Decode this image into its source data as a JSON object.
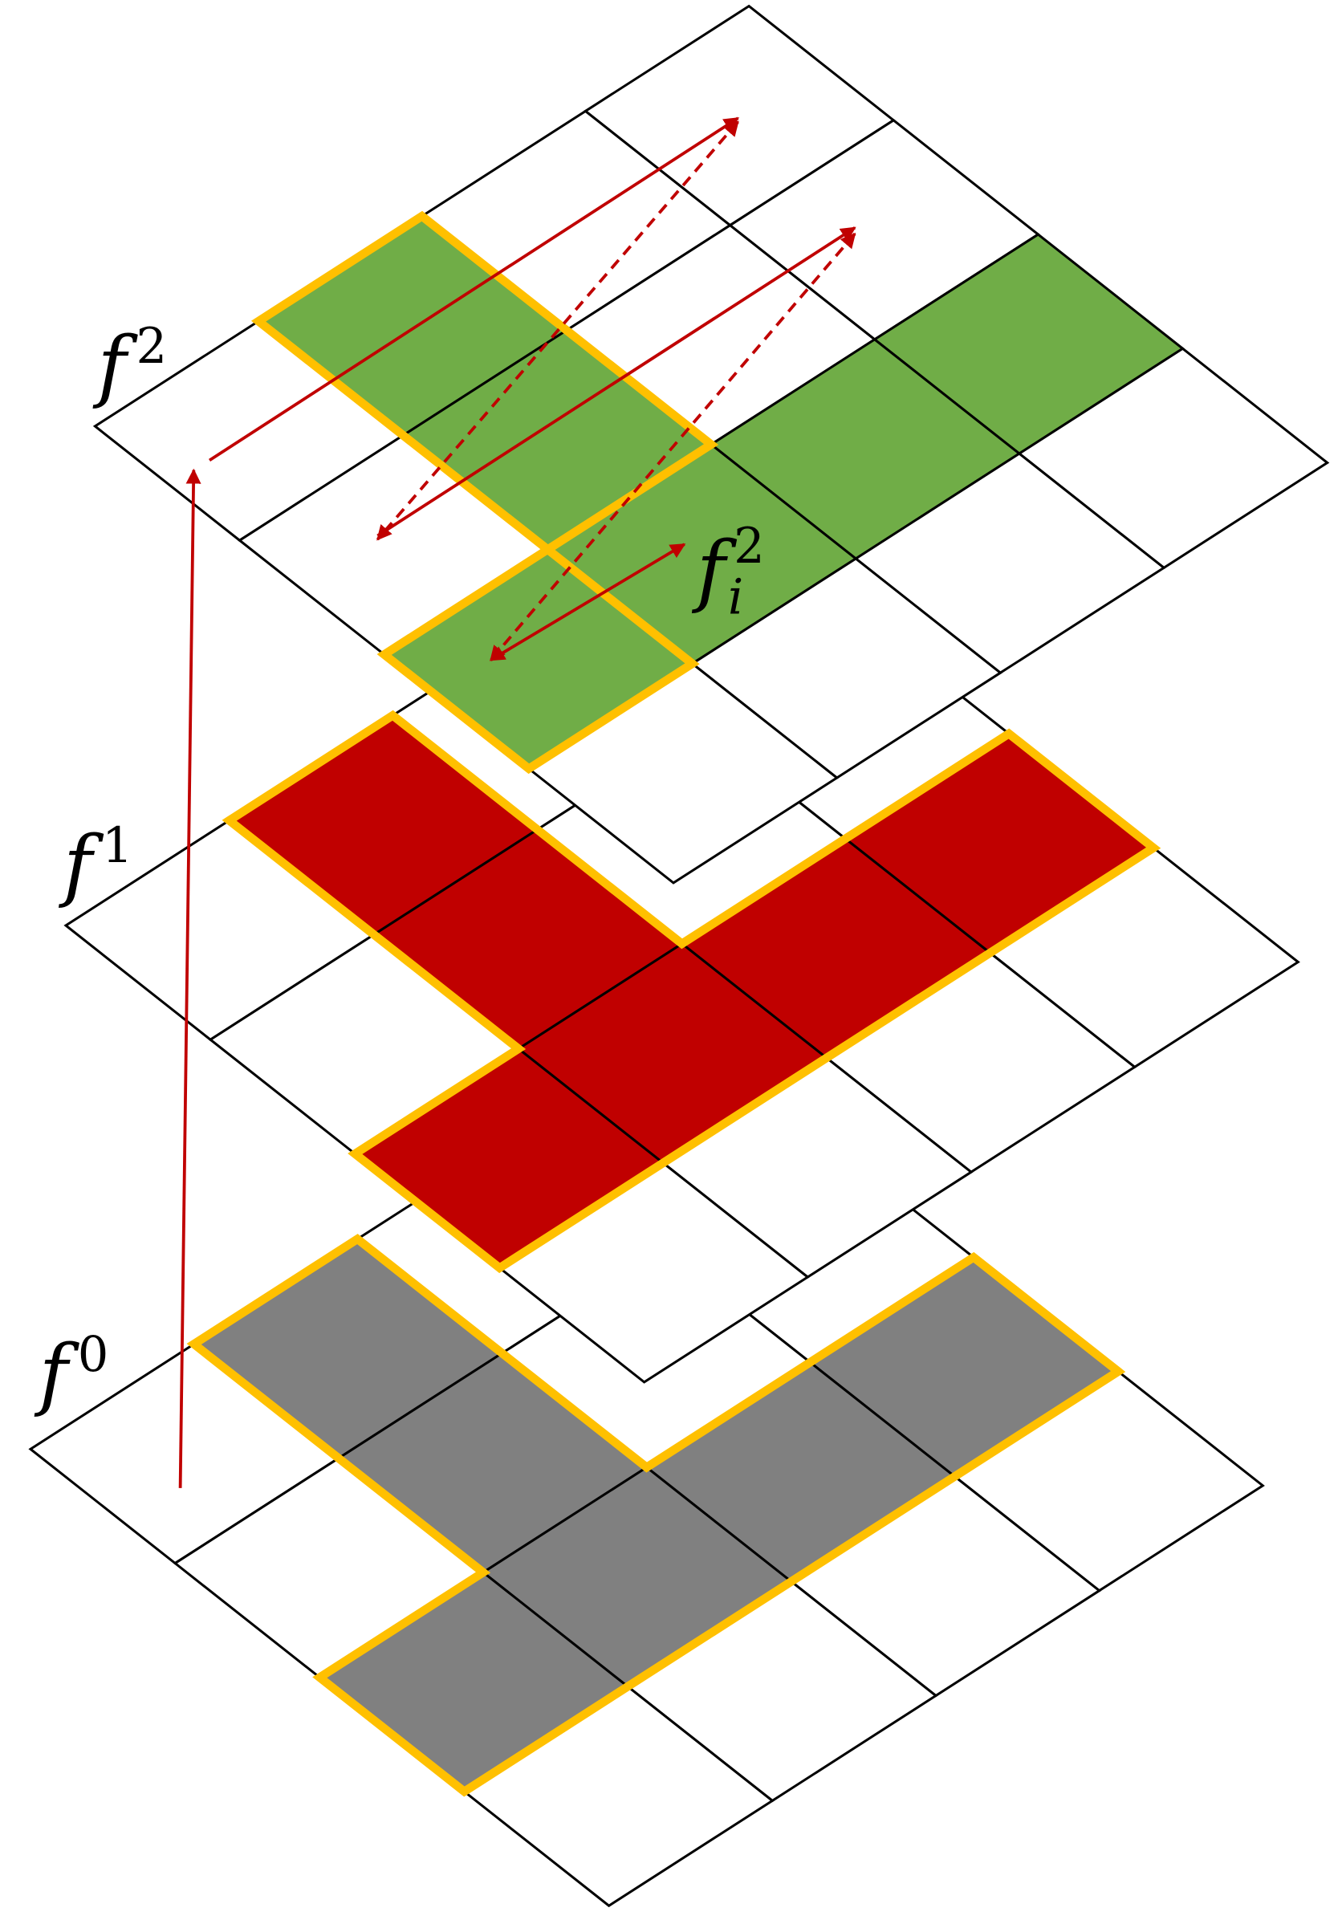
{
  "layers": [
    {
      "label": {
        "base": "f",
        "sup": "2"
      }
    },
    {
      "label": {
        "base": "f",
        "sup": "1"
      }
    },
    {
      "label": {
        "base": "f",
        "sup": "0"
      }
    }
  ],
  "annotation": {
    "base": "f",
    "sub": "i",
    "sup": "2"
  }
}
